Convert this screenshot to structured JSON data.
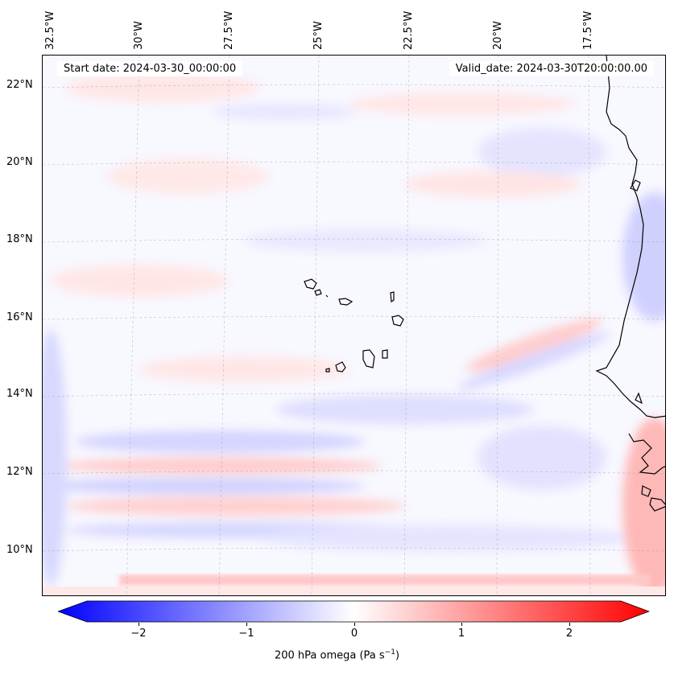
{
  "header": {
    "start_date": "Start date: 2024-03-30_00:00:00",
    "valid_date": "Valid_date: 2024-03-30T20:00:00.00"
  },
  "axes": {
    "lon_labels": [
      "32.5°W",
      "30°W",
      "27.5°W",
      "25°W",
      "22.5°W",
      "20°W",
      "17.5°W"
    ],
    "lat_labels": [
      "22°N",
      "20°N",
      "18°N",
      "16°N",
      "14°N",
      "12°N",
      "10°N"
    ]
  },
  "colorbar": {
    "ticks": [
      "−2",
      "−1",
      "0",
      "1",
      "2"
    ],
    "title": "200 hPa omega (Pa s",
    "title_sup": "−1",
    "title_end": ")",
    "range": [
      -2.7,
      2.7
    ],
    "colors": {
      "negative": "#0000ff",
      "zero": "#ffffff",
      "positive": "#ff0000"
    }
  },
  "map": {
    "gridlines": true,
    "coastline_color": "#000000",
    "field_colors": {
      "weak_positive": "#ffd8d8",
      "weak_negative": "#dcdcff",
      "strong_positive": "#ffb0b0",
      "strong_negative": "#c4c4ff"
    }
  }
}
